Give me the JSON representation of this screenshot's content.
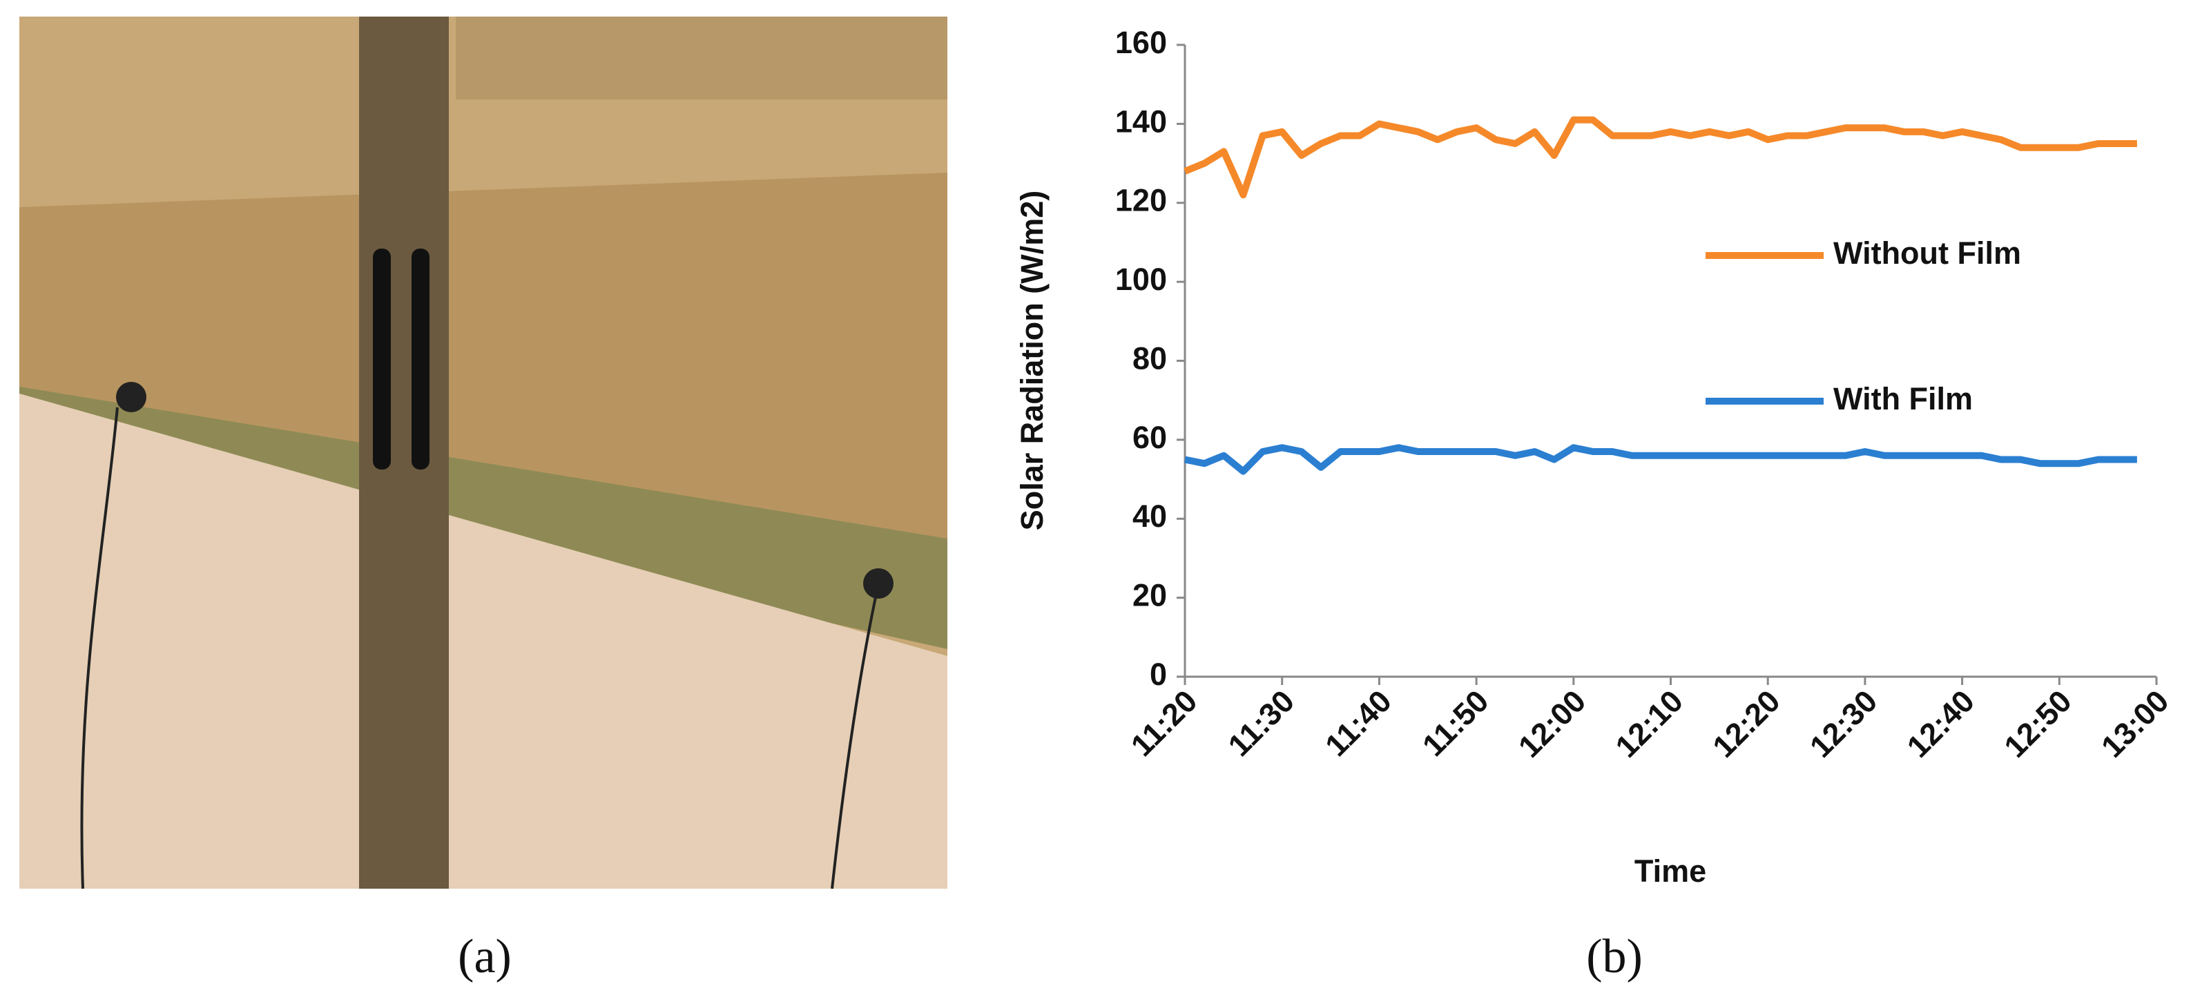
{
  "chart_data": {
    "type": "line",
    "xlabel": "Time",
    "ylabel": "Solar Radiation (W/m2)",
    "x": [
      "11:20",
      "11:22",
      "11:24",
      "11:26",
      "11:28",
      "11:30",
      "11:32",
      "11:34",
      "11:36",
      "11:38",
      "11:40",
      "11:42",
      "11:44",
      "11:46",
      "11:48",
      "11:50",
      "11:52",
      "11:54",
      "11:56",
      "11:58",
      "12:00",
      "12:02",
      "12:04",
      "12:06",
      "12:08",
      "12:10",
      "12:12",
      "12:14",
      "12:16",
      "12:18",
      "12:20",
      "12:22",
      "12:24",
      "12:26",
      "12:28",
      "12:30",
      "12:32",
      "12:34",
      "12:36",
      "12:38",
      "12:40",
      "12:42",
      "12:44",
      "12:46",
      "12:48",
      "12:50",
      "12:52",
      "12:54",
      "12:56",
      "12:58"
    ],
    "series": [
      {
        "name": "Without Film",
        "color": "#f5892a",
        "values": [
          128,
          130,
          133,
          122,
          137,
          138,
          132,
          135,
          137,
          137,
          140,
          139,
          138,
          136,
          138,
          139,
          136,
          135,
          138,
          132,
          141,
          141,
          137,
          137,
          137,
          138,
          137,
          138,
          137,
          138,
          136,
          137,
          137,
          138,
          139,
          139,
          139,
          138,
          138,
          137,
          138,
          137,
          136,
          134,
          134,
          134,
          134,
          135,
          135,
          135
        ]
      },
      {
        "name": "With Film",
        "color": "#2b7fd1",
        "values": [
          55,
          54,
          56,
          52,
          57,
          58,
          57,
          53,
          57,
          57,
          57,
          58,
          57,
          57,
          57,
          57,
          57,
          56,
          57,
          55,
          58,
          57,
          57,
          56,
          56,
          56,
          56,
          56,
          56,
          56,
          56,
          56,
          56,
          56,
          56,
          57,
          56,
          56,
          56,
          56,
          56,
          56,
          55,
          55,
          54,
          54,
          54,
          55,
          55,
          55
        ]
      }
    ],
    "xlim": [
      "11:20",
      "13:00"
    ],
    "xticks": [
      "11:20",
      "11:30",
      "11:40",
      "11:50",
      "12:00",
      "12:10",
      "12:20",
      "12:30",
      "12:40",
      "12:50",
      "13:00"
    ],
    "ylim": [
      0,
      160
    ],
    "yticks": [
      0,
      20,
      40,
      60,
      80,
      100,
      120,
      140,
      160
    ]
  },
  "captions": [
    "(a)",
    "(b)"
  ]
}
